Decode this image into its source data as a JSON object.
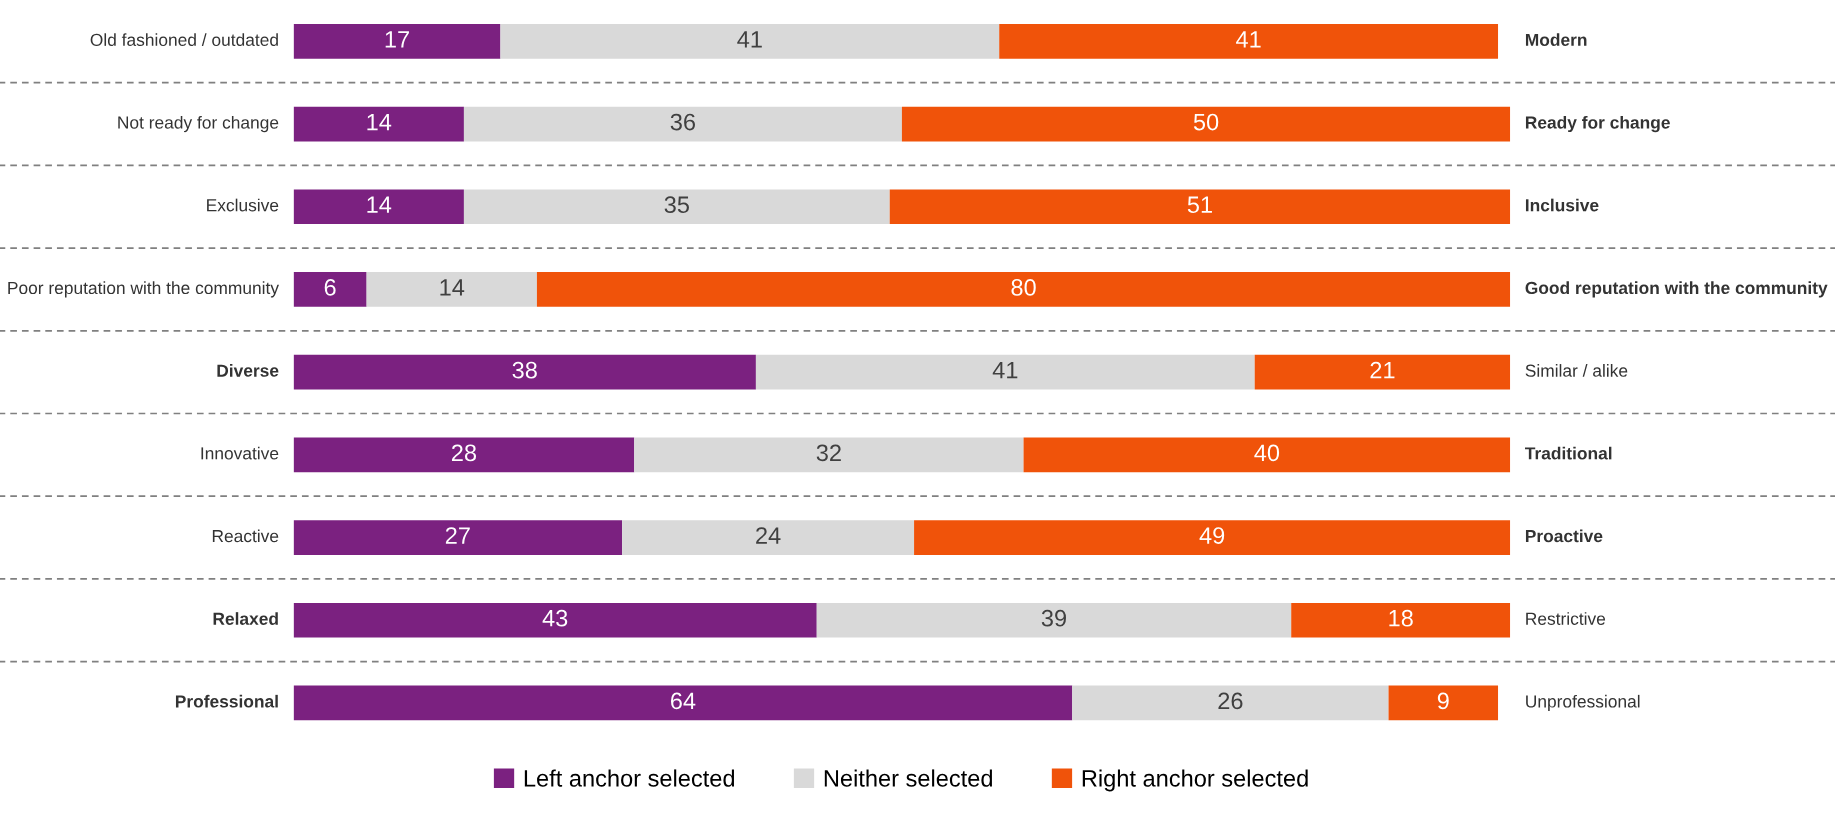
{
  "chart_data": {
    "type": "bar",
    "orientation": "horizontal",
    "stacked": true,
    "data_labels": true,
    "grid": "y",
    "legend": "bottom",
    "categories": [
      "Old fashioned / outdated",
      "Not ready for change",
      "Exclusive",
      "Poor reputation with the community",
      "Diverse",
      "Innovative",
      "Reactive",
      "Relaxed",
      "Professional"
    ],
    "y2_categories": [
      "Modern",
      "Ready for change",
      "Inclusive",
      "Good reputation with the community",
      "Similar / alike",
      "Traditional",
      "Proactive",
      "Restrictive",
      "Unprofessional"
    ],
    "series": [
      {
        "name": "Left anchor selected",
        "color": "#7b2180",
        "values": [
          17,
          14,
          14,
          6,
          38,
          28,
          27,
          43,
          64
        ]
      },
      {
        "name": "Neither selected",
        "color": "#d9d9d9",
        "values": [
          41,
          36,
          35,
          14,
          41,
          32,
          24,
          39,
          26
        ]
      },
      {
        "name": "Right anchor selected",
        "color": "#f0530a",
        "values": [
          41,
          50,
          51,
          80,
          21,
          40,
          49,
          18,
          9
        ]
      }
    ]
  }
}
